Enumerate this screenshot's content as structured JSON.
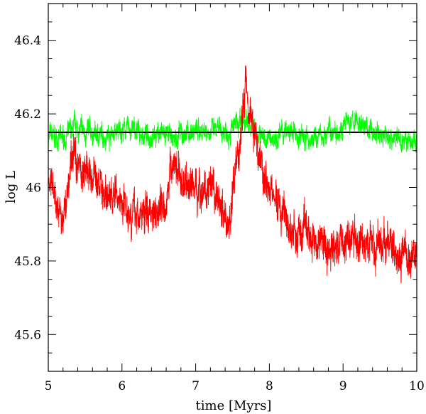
{
  "chart_data": {
    "type": "line",
    "xlabel": "time [Myrs]",
    "ylabel": "log L",
    "xlim": [
      5,
      10
    ],
    "ylim": [
      45.5,
      46.5
    ],
    "x_ticks": [
      "5",
      "6",
      "7",
      "8",
      "9",
      "10"
    ],
    "y_ticks": [
      "45.6",
      "45.8",
      "46",
      "46.2",
      "46.4"
    ],
    "grid": false,
    "colors": {
      "red": "#ff0000",
      "green": "#00ff00",
      "reference": "#000000"
    },
    "series": [
      {
        "color": "#00ff00",
        "x": [
          5.0,
          5.2,
          5.35,
          5.5,
          5.7,
          5.9,
          6.1,
          6.3,
          6.5,
          6.7,
          6.9,
          7.1,
          7.3,
          7.5,
          7.65,
          7.75,
          7.85,
          8.0,
          8.2,
          8.4,
          8.6,
          8.8,
          9.0,
          9.2,
          9.4,
          9.6,
          9.8,
          10.0
        ],
        "y": [
          46.14,
          46.13,
          46.16,
          46.15,
          46.14,
          46.15,
          46.16,
          46.14,
          46.15,
          46.13,
          46.15,
          46.16,
          46.15,
          46.16,
          46.17,
          46.18,
          46.14,
          46.13,
          46.15,
          46.14,
          46.13,
          46.15,
          46.17,
          46.18,
          46.15,
          46.14,
          46.13,
          46.12
        ],
        "noise": 0.025
      },
      {
        "color": "#ff0000",
        "x": [
          5.0,
          5.1,
          5.2,
          5.3,
          5.35,
          5.45,
          5.6,
          5.8,
          6.0,
          6.2,
          6.4,
          6.6,
          6.7,
          6.8,
          7.0,
          7.2,
          7.35,
          7.45,
          7.55,
          7.62,
          7.68,
          7.75,
          7.85,
          8.0,
          8.2,
          8.35,
          8.5,
          8.7,
          8.85,
          9.0,
          9.2,
          9.4,
          9.6,
          9.8,
          9.9,
          10.0
        ],
        "y": [
          46.02,
          45.95,
          45.9,
          46.05,
          46.1,
          46.05,
          46.03,
          45.98,
          45.97,
          45.92,
          45.94,
          45.97,
          46.08,
          46.02,
          46.0,
          45.98,
          45.95,
          45.9,
          46.05,
          46.15,
          46.3,
          46.2,
          46.1,
          46.0,
          45.92,
          45.86,
          45.88,
          45.85,
          45.83,
          45.86,
          45.85,
          45.84,
          45.85,
          45.82,
          45.8,
          45.85
        ],
        "noise": 0.045
      }
    ],
    "reference_line": {
      "y": 46.15,
      "color": "#000000"
    }
  }
}
